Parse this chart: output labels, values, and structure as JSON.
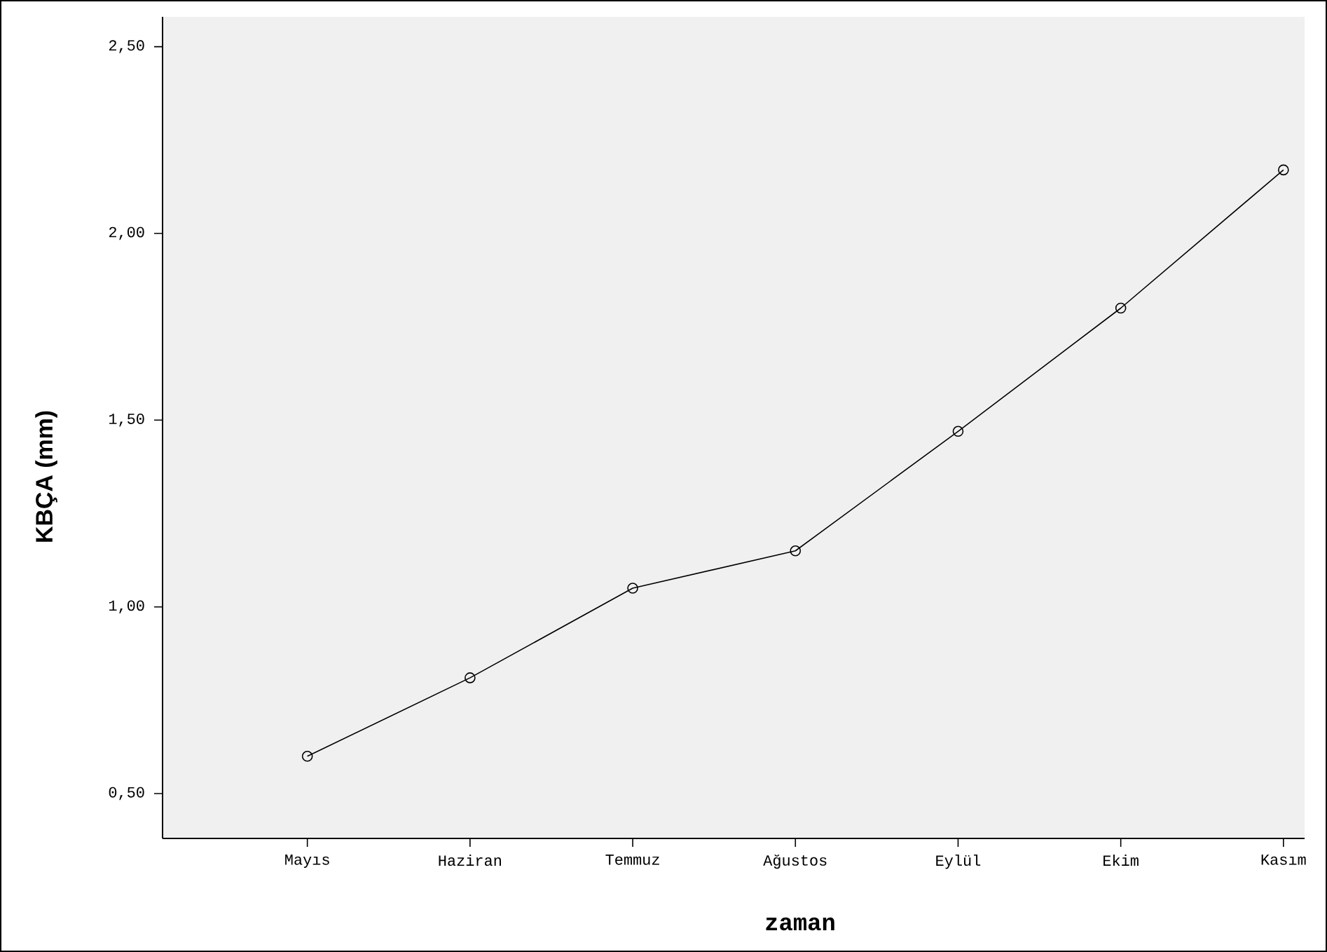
{
  "chart_data": {
    "type": "line",
    "xlabel": "zaman",
    "ylabel": "KBÇA (mm)",
    "categories": [
      "Mayıs",
      "Haziran",
      "Temmuz",
      "Ağustos",
      "Eylül",
      "Ekim",
      "Kasım"
    ],
    "series": [
      {
        "color": "#000000",
        "values": [
          0.6,
          0.81,
          1.05,
          1.15,
          1.47,
          1.8,
          2.17
        ]
      }
    ],
    "ylim": [
      0.38,
      2.58
    ],
    "yticks": [
      {
        "value": 0.5,
        "label": "0,50"
      },
      {
        "value": 1.0,
        "label": "1,00"
      },
      {
        "value": 1.5,
        "label": "1,50"
      },
      {
        "value": 2.0,
        "label": "2,00"
      },
      {
        "value": 2.5,
        "label": "2,50"
      }
    ],
    "marker": "circle",
    "line_style": "solid",
    "grid": false
  }
}
